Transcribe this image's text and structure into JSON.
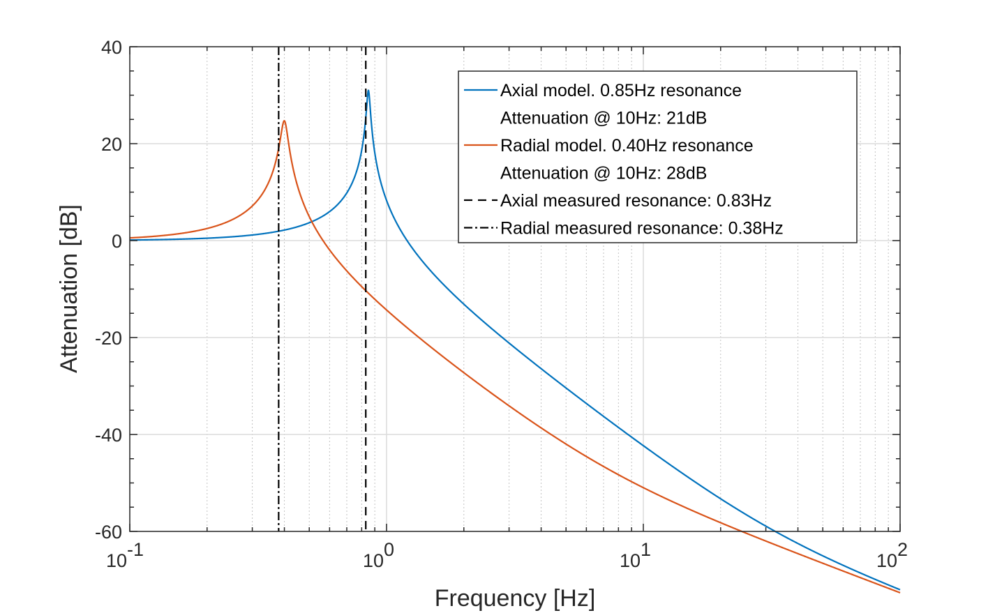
{
  "chart_data": {
    "type": "line",
    "xscale": "log",
    "xlim": [
      0.1,
      100
    ],
    "ylim": [
      -60,
      40
    ],
    "xlabel": "Frequency [Hz]",
    "ylabel": "Attenuation [dB]",
    "grid": true,
    "x_ticks": [
      {
        "value": 0.1,
        "base": "10",
        "exp": "-1"
      },
      {
        "value": 1,
        "base": "10",
        "exp": "0"
      },
      {
        "value": 10,
        "base": "10",
        "exp": "1"
      },
      {
        "value": 100,
        "base": "10",
        "exp": "2"
      }
    ],
    "y_ticks": [
      {
        "value": 40,
        "label": "40"
      },
      {
        "value": 20,
        "label": "20"
      },
      {
        "value": 0,
        "label": "0"
      },
      {
        "value": -20,
        "label": "-20"
      },
      {
        "value": -40,
        "label": "-40"
      },
      {
        "value": -60,
        "label": "-60"
      }
    ],
    "series": [
      {
        "name": "Axial model. 0.85Hz resonance",
        "kind": "model",
        "f0": 0.85,
        "peak_db": 31,
        "color": "#0072BD",
        "dash": "solid"
      },
      {
        "name": "Radial model. 0.40Hz resonance",
        "kind": "model",
        "f0": 0.4,
        "peak_db": 24.7,
        "color": "#D95319",
        "dash": "solid"
      },
      {
        "name": "Axial measured resonance: 0.83Hz",
        "kind": "vline",
        "x": 0.83,
        "color": "#000000",
        "dash": "dashed"
      },
      {
        "name": "Radial measured resonance: 0.38Hz",
        "kind": "vline",
        "x": 0.38,
        "color": "#000000",
        "dash": "dashdot"
      }
    ],
    "legend": {
      "position": "top-right",
      "entries": [
        {
          "lines": [
            "Axial model. 0.85Hz resonance",
            "Attenuation @ 10Hz: 21dB"
          ],
          "color": "#0072BD",
          "dash": "solid"
        },
        {
          "lines": [
            "Radial model. 0.40Hz resonance",
            "Attenuation @ 10Hz: 28dB"
          ],
          "color": "#D95319",
          "dash": "solid"
        },
        {
          "lines": [
            "Axial measured resonance: 0.83Hz"
          ],
          "color": "#000000",
          "dash": "dashed"
        },
        {
          "lines": [
            "Radial measured resonance: 0.38Hz"
          ],
          "color": "#000000",
          "dash": "dashdot"
        }
      ]
    }
  }
}
